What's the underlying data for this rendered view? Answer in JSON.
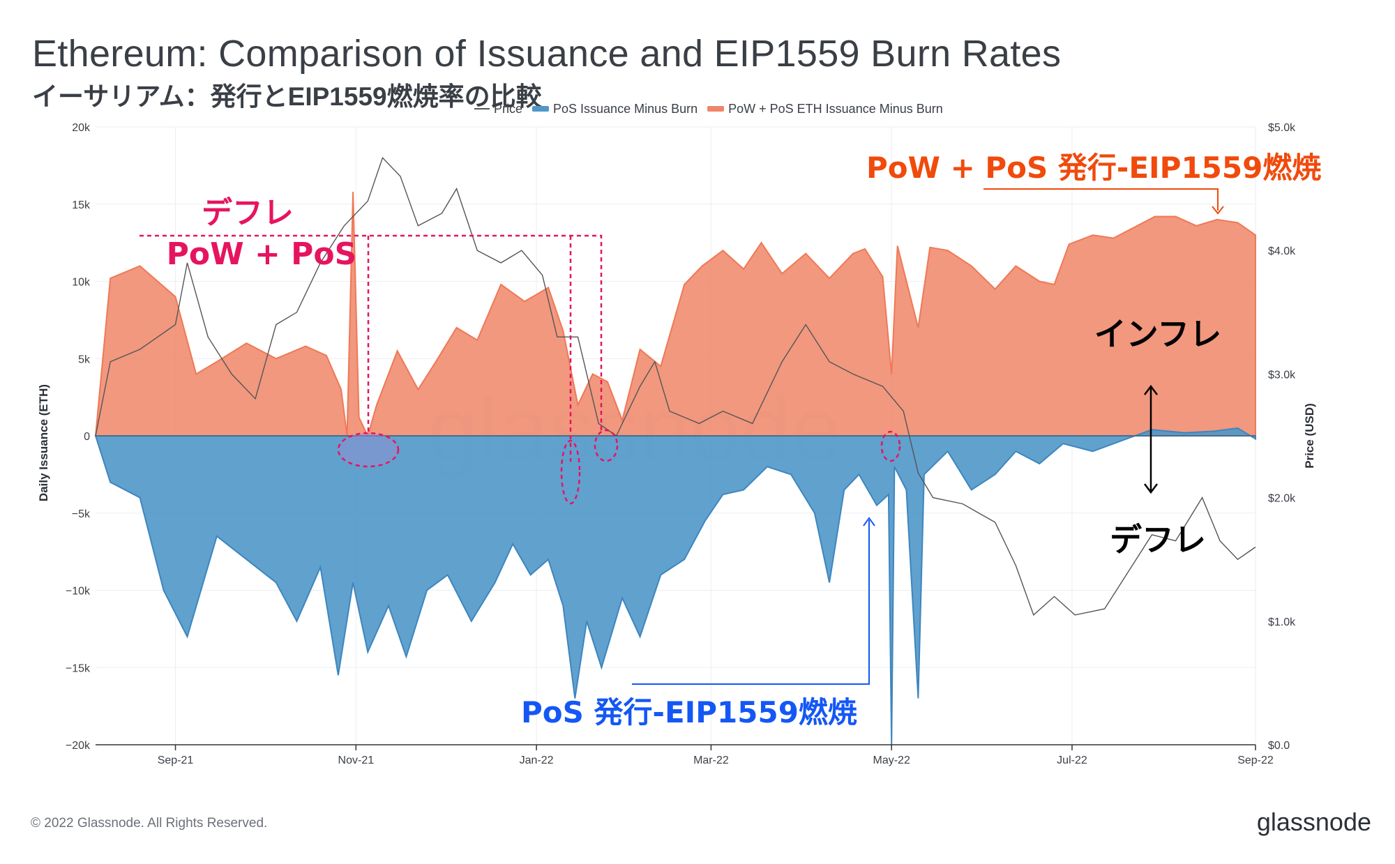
{
  "title": "Ethereum: Comparison of Issuance and EIP1559 Burn Rates",
  "subtitle": "イーサリアム：発行とEIP1559燃焼率の比較",
  "footer": {
    "copyright": "© 2022 Glassnode. All Rights Reserved.",
    "brand": "glassnode"
  },
  "watermark": "glassnode",
  "legend": [
    {
      "label": "Price",
      "type": "line",
      "color": "#555555"
    },
    {
      "label": "PoS Issuance Minus Burn",
      "type": "area",
      "color": "#4f97c9"
    },
    {
      "label": "PoW + PoS ETH Issuance Minus Burn",
      "type": "area",
      "color": "#ef8669"
    }
  ],
  "annotations": {
    "deflation_pow": "デフレ",
    "pow_pos": "PoW + PoS",
    "pow_pos_label": "PoW + PoS 発行-EIP1559燃焼",
    "inflation": "インフレ",
    "deflation_right": "デフレ",
    "pos_label": "PoS 発行-EIP1559燃焼"
  },
  "colors": {
    "pow_area": "#ef8669",
    "pos_area": "#4f97c9",
    "price": "#555555",
    "annotation_pink": "#e6145f",
    "annotation_orange": "#f04a0c",
    "annotation_blue": "#1457f5",
    "annotation_black": "#000000"
  },
  "chart_data": {
    "type": "area",
    "x_start": "2021-08-05",
    "x_end": "2022-09-01",
    "xticks": [
      "Sep-21",
      "Nov-21",
      "Jan-22",
      "Mar-22",
      "May-22",
      "Jul-22",
      "Sep-22"
    ],
    "ylabel_left": "Daily Issuance (ETH)",
    "ylabel_right": "Price (USD)",
    "ylim_left": [
      -20000,
      20000
    ],
    "yticks_left": [
      "20k",
      "15k",
      "10k",
      "5k",
      "0",
      "−5k",
      "−10k",
      "−15k",
      "−20k"
    ],
    "ylim_right": [
      0,
      5000
    ],
    "yticks_right": [
      "$5.0k",
      "$4.0k",
      "$3.0k",
      "$2.0k",
      "$1.0k",
      "$0.0"
    ],
    "series": [
      {
        "name": "PoW + PoS ETH Issuance Minus Burn",
        "points": [
          [
            "2021-08-05",
            0
          ],
          [
            "2021-08-10",
            10200
          ],
          [
            "2021-08-20",
            11000
          ],
          [
            "2021-09-01",
            9000
          ],
          [
            "2021-09-08",
            4000
          ],
          [
            "2021-09-15",
            4800
          ],
          [
            "2021-09-25",
            6000
          ],
          [
            "2021-10-05",
            5000
          ],
          [
            "2021-10-15",
            5800
          ],
          [
            "2021-10-22",
            5200
          ],
          [
            "2021-10-27",
            3000
          ],
          [
            "2021-10-29",
            0
          ],
          [
            "2021-10-31",
            15800
          ],
          [
            "2021-11-02",
            1200
          ],
          [
            "2021-11-05",
            0
          ],
          [
            "2021-11-08",
            2000
          ],
          [
            "2021-11-15",
            5500
          ],
          [
            "2021-11-22",
            3000
          ],
          [
            "2021-11-28",
            4800
          ],
          [
            "2021-12-05",
            7000
          ],
          [
            "2021-12-12",
            6200
          ],
          [
            "2021-12-20",
            9800
          ],
          [
            "2021-12-28",
            8700
          ],
          [
            "2022-01-05",
            9600
          ],
          [
            "2022-01-10",
            6800
          ],
          [
            "2022-01-15",
            2000
          ],
          [
            "2022-01-20",
            4000
          ],
          [
            "2022-01-25",
            3500
          ],
          [
            "2022-01-30",
            1000
          ],
          [
            "2022-02-05",
            5600
          ],
          [
            "2022-02-12",
            4500
          ],
          [
            "2022-02-20",
            9800
          ],
          [
            "2022-02-26",
            11000
          ],
          [
            "2022-03-05",
            12000
          ],
          [
            "2022-03-12",
            10800
          ],
          [
            "2022-03-18",
            12500
          ],
          [
            "2022-03-25",
            10500
          ],
          [
            "2022-04-02",
            11800
          ],
          [
            "2022-04-10",
            10200
          ],
          [
            "2022-04-18",
            11800
          ],
          [
            "2022-04-22",
            12100
          ],
          [
            "2022-04-28",
            10300
          ],
          [
            "2022-05-01",
            4000
          ],
          [
            "2022-05-03",
            12300
          ],
          [
            "2022-05-10",
            7000
          ],
          [
            "2022-05-14",
            12200
          ],
          [
            "2022-05-20",
            12000
          ],
          [
            "2022-05-28",
            11000
          ],
          [
            "2022-06-05",
            9500
          ],
          [
            "2022-06-12",
            11000
          ],
          [
            "2022-06-20",
            10000
          ],
          [
            "2022-06-25",
            9800
          ],
          [
            "2022-06-30",
            12400
          ],
          [
            "2022-07-08",
            13000
          ],
          [
            "2022-07-15",
            12800
          ],
          [
            "2022-07-22",
            13500
          ],
          [
            "2022-07-29",
            14200
          ],
          [
            "2022-08-05",
            14200
          ],
          [
            "2022-08-12",
            13600
          ],
          [
            "2022-08-19",
            14000
          ],
          [
            "2022-08-26",
            13800
          ],
          [
            "2022-09-01",
            13000
          ]
        ]
      },
      {
        "name": "PoS Issuance Minus Burn",
        "points": [
          [
            "2021-08-05",
            0
          ],
          [
            "2021-08-10",
            -3000
          ],
          [
            "2021-08-20",
            -4000
          ],
          [
            "2021-08-28",
            -10000
          ],
          [
            "2021-09-05",
            -13000
          ],
          [
            "2021-09-15",
            -6500
          ],
          [
            "2021-09-25",
            -8000
          ],
          [
            "2021-10-05",
            -9500
          ],
          [
            "2021-10-12",
            -12000
          ],
          [
            "2021-10-20",
            -8500
          ],
          [
            "2021-10-26",
            -15500
          ],
          [
            "2021-10-31",
            -9500
          ],
          [
            "2021-11-05",
            -14000
          ],
          [
            "2021-11-12",
            -11000
          ],
          [
            "2021-11-18",
            -14300
          ],
          [
            "2021-11-25",
            -10000
          ],
          [
            "2021-12-02",
            -9000
          ],
          [
            "2021-12-10",
            -12000
          ],
          [
            "2021-12-18",
            -9500
          ],
          [
            "2021-12-24",
            -7000
          ],
          [
            "2021-12-30",
            -9000
          ],
          [
            "2022-01-05",
            -8000
          ],
          [
            "2022-01-10",
            -11000
          ],
          [
            "2022-01-14",
            -17000
          ],
          [
            "2022-01-18",
            -12000
          ],
          [
            "2022-01-23",
            -15000
          ],
          [
            "2022-01-30",
            -10500
          ],
          [
            "2022-02-05",
            -13000
          ],
          [
            "2022-02-12",
            -9000
          ],
          [
            "2022-02-20",
            -8000
          ],
          [
            "2022-02-27",
            -5500
          ],
          [
            "2022-03-05",
            -3800
          ],
          [
            "2022-03-12",
            -3500
          ],
          [
            "2022-03-20",
            -2000
          ],
          [
            "2022-03-28",
            -2500
          ],
          [
            "2022-04-05",
            -5000
          ],
          [
            "2022-04-10",
            -9500
          ],
          [
            "2022-04-15",
            -3500
          ],
          [
            "2022-04-20",
            -2500
          ],
          [
            "2022-04-26",
            -4500
          ],
          [
            "2022-04-30",
            -3800
          ],
          [
            "2022-05-01",
            -20000
          ],
          [
            "2022-05-02",
            -2000
          ],
          [
            "2022-05-06",
            -3500
          ],
          [
            "2022-05-10",
            -17000
          ],
          [
            "2022-05-12",
            -2500
          ],
          [
            "2022-05-20",
            -1000
          ],
          [
            "2022-05-28",
            -3500
          ],
          [
            "2022-06-05",
            -2500
          ],
          [
            "2022-06-12",
            -1000
          ],
          [
            "2022-06-20",
            -1800
          ],
          [
            "2022-06-28",
            -500
          ],
          [
            "2022-07-08",
            -1000
          ],
          [
            "2022-07-18",
            -300
          ],
          [
            "2022-07-28",
            400
          ],
          [
            "2022-08-08",
            200
          ],
          [
            "2022-08-18",
            300
          ],
          [
            "2022-08-26",
            500
          ],
          [
            "2022-09-01",
            -200
          ]
        ]
      },
      {
        "name": "Price",
        "points": [
          [
            "2021-08-05",
            2500
          ],
          [
            "2021-08-10",
            3100
          ],
          [
            "2021-08-20",
            3200
          ],
          [
            "2021-09-01",
            3400
          ],
          [
            "2021-09-05",
            3900
          ],
          [
            "2021-09-12",
            3300
          ],
          [
            "2021-09-20",
            3000
          ],
          [
            "2021-09-28",
            2800
          ],
          [
            "2021-10-05",
            3400
          ],
          [
            "2021-10-12",
            3500
          ],
          [
            "2021-10-20",
            3900
          ],
          [
            "2021-10-28",
            4200
          ],
          [
            "2021-11-05",
            4400
          ],
          [
            "2021-11-10",
            4750
          ],
          [
            "2021-11-16",
            4600
          ],
          [
            "2021-11-22",
            4200
          ],
          [
            "2021-11-30",
            4300
          ],
          [
            "2021-12-05",
            4500
          ],
          [
            "2021-12-12",
            4000
          ],
          [
            "2021-12-20",
            3900
          ],
          [
            "2021-12-27",
            4000
          ],
          [
            "2022-01-03",
            3800
          ],
          [
            "2022-01-08",
            3300
          ],
          [
            "2022-01-15",
            3300
          ],
          [
            "2022-01-22",
            2600
          ],
          [
            "2022-01-28",
            2500
          ],
          [
            "2022-02-05",
            2900
          ],
          [
            "2022-02-10",
            3100
          ],
          [
            "2022-02-15",
            2700
          ],
          [
            "2022-02-25",
            2600
          ],
          [
            "2022-03-05",
            2700
          ],
          [
            "2022-03-15",
            2600
          ],
          [
            "2022-03-25",
            3100
          ],
          [
            "2022-04-02",
            3400
          ],
          [
            "2022-04-10",
            3100
          ],
          [
            "2022-04-18",
            3000
          ],
          [
            "2022-04-28",
            2900
          ],
          [
            "2022-05-05",
            2700
          ],
          [
            "2022-05-10",
            2200
          ],
          [
            "2022-05-15",
            2000
          ],
          [
            "2022-05-25",
            1950
          ],
          [
            "2022-06-05",
            1800
          ],
          [
            "2022-06-12",
            1450
          ],
          [
            "2022-06-18",
            1050
          ],
          [
            "2022-06-25",
            1200
          ],
          [
            "2022-07-02",
            1050
          ],
          [
            "2022-07-12",
            1100
          ],
          [
            "2022-07-20",
            1400
          ],
          [
            "2022-07-28",
            1700
          ],
          [
            "2022-08-05",
            1650
          ],
          [
            "2022-08-14",
            2000
          ],
          [
            "2022-08-20",
            1650
          ],
          [
            "2022-08-26",
            1500
          ],
          [
            "2022-09-01",
            1600
          ]
        ]
      }
    ]
  }
}
